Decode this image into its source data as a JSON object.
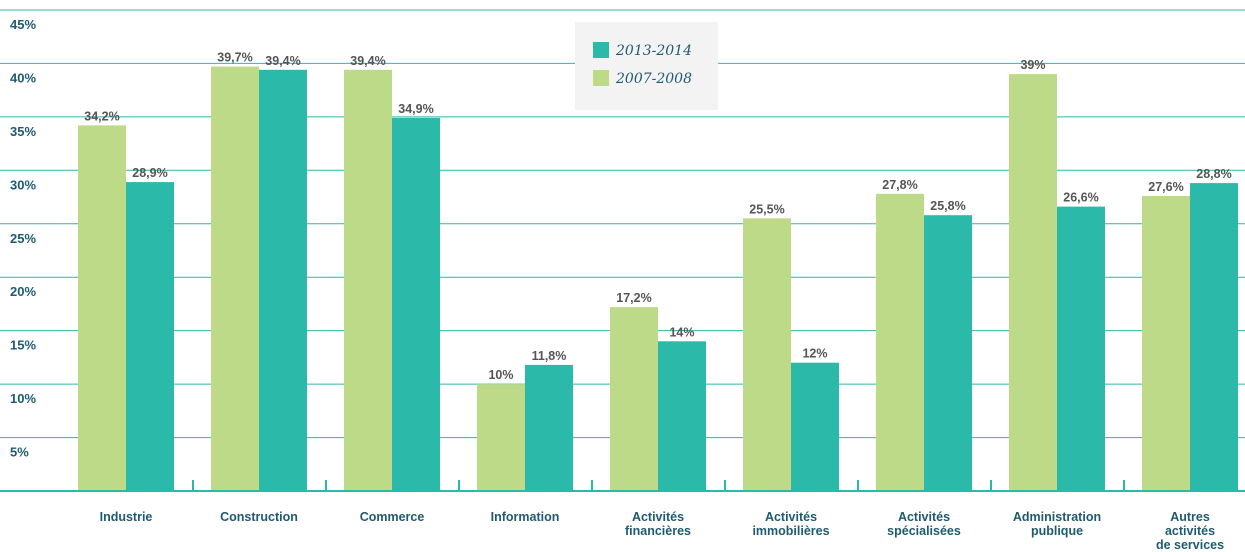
{
  "chart_data": {
    "type": "bar",
    "categories": [
      [
        "Industrie"
      ],
      [
        "Construction"
      ],
      [
        "Commerce"
      ],
      [
        "Information"
      ],
      [
        "Activités",
        "financières"
      ],
      [
        "Activités",
        "immobilières"
      ],
      [
        "Activités",
        "spécialisées"
      ],
      [
        "Administration",
        "publique"
      ],
      [
        "Autres",
        "activités",
        "de services"
      ]
    ],
    "series": [
      {
        "name": "2007-2008",
        "color": "#bdda89",
        "values": [
          34.2,
          39.7,
          39.4,
          10,
          17.2,
          25.5,
          27.8,
          39,
          27.6
        ],
        "labels": [
          "34,2%",
          "39,7%",
          "39,4%",
          "10%",
          "17,2%",
          "25,5%",
          "27,8%",
          "39%",
          "27,6%"
        ]
      },
      {
        "name": "2013-2014",
        "color": "#2bb9aa",
        "values": [
          28.9,
          39.4,
          34.9,
          11.8,
          14,
          12,
          25.8,
          26.6,
          28.8
        ],
        "labels": [
          "28,9%",
          "39,4%",
          "34,9%",
          "11,8%",
          "14%",
          "12%",
          "25,8%",
          "26,6%",
          "28,8%"
        ]
      }
    ],
    "legend_order": [
      "2013-2014",
      "2007-2008"
    ],
    "legend_placement": "top-center",
    "yticks": [
      "5%",
      "10%",
      "15%",
      "20%",
      "25%",
      "30%",
      "35%",
      "40%",
      "45%"
    ],
    "ylim": [
      0,
      45
    ],
    "grid": true,
    "xlabel": "",
    "ylabel": "",
    "title": ""
  }
}
